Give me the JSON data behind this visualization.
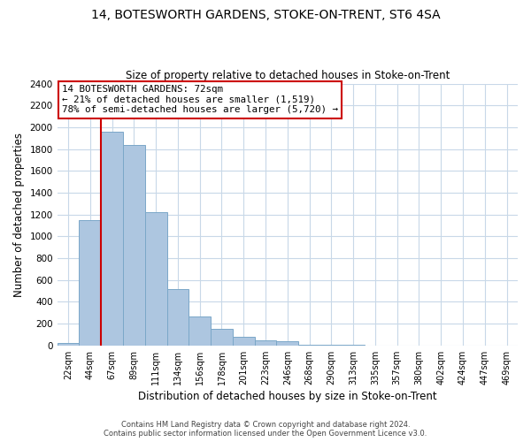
{
  "title": "14, BOTESWORTH GARDENS, STOKE-ON-TRENT, ST6 4SA",
  "subtitle": "Size of property relative to detached houses in Stoke-on-Trent",
  "xlabel": "Distribution of detached houses by size in Stoke-on-Trent",
  "ylabel": "Number of detached properties",
  "bar_labels": [
    "22sqm",
    "44sqm",
    "67sqm",
    "89sqm",
    "111sqm",
    "134sqm",
    "156sqm",
    "178sqm",
    "201sqm",
    "223sqm",
    "246sqm",
    "268sqm",
    "290sqm",
    "313sqm",
    "335sqm",
    "357sqm",
    "380sqm",
    "402sqm",
    "424sqm",
    "447sqm",
    "469sqm"
  ],
  "bar_values": [
    25,
    1150,
    1960,
    1840,
    1220,
    520,
    265,
    150,
    80,
    50,
    40,
    5,
    5,
    5,
    0,
    0,
    0,
    0,
    0,
    0,
    0
  ],
  "bar_color": "#adc6e0",
  "bar_edge_color": "#7ba7c8",
  "vline_color": "#cc0000",
  "ylim": [
    0,
    2400
  ],
  "yticks": [
    0,
    200,
    400,
    600,
    800,
    1000,
    1200,
    1400,
    1600,
    1800,
    2000,
    2200,
    2400
  ],
  "annotation_title": "14 BOTESWORTH GARDENS: 72sqm",
  "annotation_line1": "← 21% of detached houses are smaller (1,519)",
  "annotation_line2": "78% of semi-detached houses are larger (5,720) →",
  "annotation_box_color": "#ffffff",
  "annotation_box_edge": "#cc0000",
  "footer_line1": "Contains HM Land Registry data © Crown copyright and database right 2024.",
  "footer_line2": "Contains public sector information licensed under the Open Government Licence v3.0.",
  "background_color": "#ffffff",
  "grid_color": "#c8d8e8"
}
